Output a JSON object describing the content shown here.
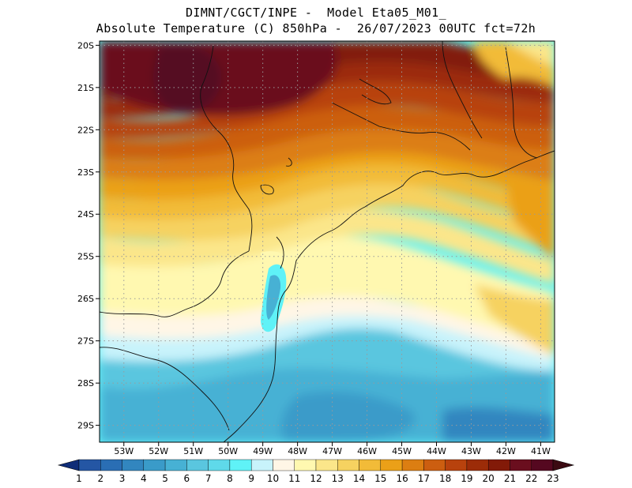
{
  "title": {
    "line1": "DIMNT/CGCT/INPE -  Model Eta05_M01_",
    "line2": "Absolute Temperature (C) 850hPa -  26/07/2023 00UTC fct=72h"
  },
  "map": {
    "lon_range": [
      -53.7,
      -40.6
    ],
    "lat_range": [
      -29.4,
      -19.9
    ],
    "lon_ticks": [
      {
        "value": -53,
        "label": "53W"
      },
      {
        "value": -52,
        "label": "52W"
      },
      {
        "value": -51,
        "label": "51W"
      },
      {
        "value": -50,
        "label": "50W"
      },
      {
        "value": -49,
        "label": "49W"
      },
      {
        "value": -48,
        "label": "48W"
      },
      {
        "value": -47,
        "label": "47W"
      },
      {
        "value": -46,
        "label": "46W"
      },
      {
        "value": -45,
        "label": "45W"
      },
      {
        "value": -44,
        "label": "44W"
      },
      {
        "value": -43,
        "label": "43W"
      },
      {
        "value": -42,
        "label": "42W"
      },
      {
        "value": -41,
        "label": "41W"
      }
    ],
    "lat_ticks": [
      {
        "value": -20,
        "label": "20S"
      },
      {
        "value": -21,
        "label": "21S"
      },
      {
        "value": -22,
        "label": "22S"
      },
      {
        "value": -23,
        "label": "23S"
      },
      {
        "value": -24,
        "label": "24S"
      },
      {
        "value": -25,
        "label": "25S"
      },
      {
        "value": -26,
        "label": "26S"
      },
      {
        "value": -27,
        "label": "27S"
      },
      {
        "value": -28,
        "label": "28S"
      },
      {
        "value": -29,
        "label": "29S"
      }
    ]
  },
  "colorbar": {
    "labels": [
      "1",
      "2",
      "3",
      "4",
      "5",
      "6",
      "7",
      "8",
      "9",
      "10",
      "11",
      "12",
      "13",
      "14",
      "15",
      "16",
      "17",
      "18",
      "19",
      "20",
      "21",
      "22",
      "23"
    ],
    "colors": [
      "#1f3f8f",
      "#2456a4",
      "#2a6eb4",
      "#3286bf",
      "#3a9bc9",
      "#47b1d4",
      "#5ac6df",
      "#5fd9ea",
      "#5ff2f7",
      "#c8f3fb",
      "#fff6e6",
      "#fff8b0",
      "#fbe68a",
      "#f6d260",
      "#f2bb38",
      "#eba018",
      "#dc7e12",
      "#cc5e10",
      "#b8420d",
      "#9c2c08",
      "#821a08",
      "#6a0e1e",
      "#550820"
    ],
    "left_triangle_color": "#0f2d78",
    "right_triangle_color": "#3b0a12"
  }
}
